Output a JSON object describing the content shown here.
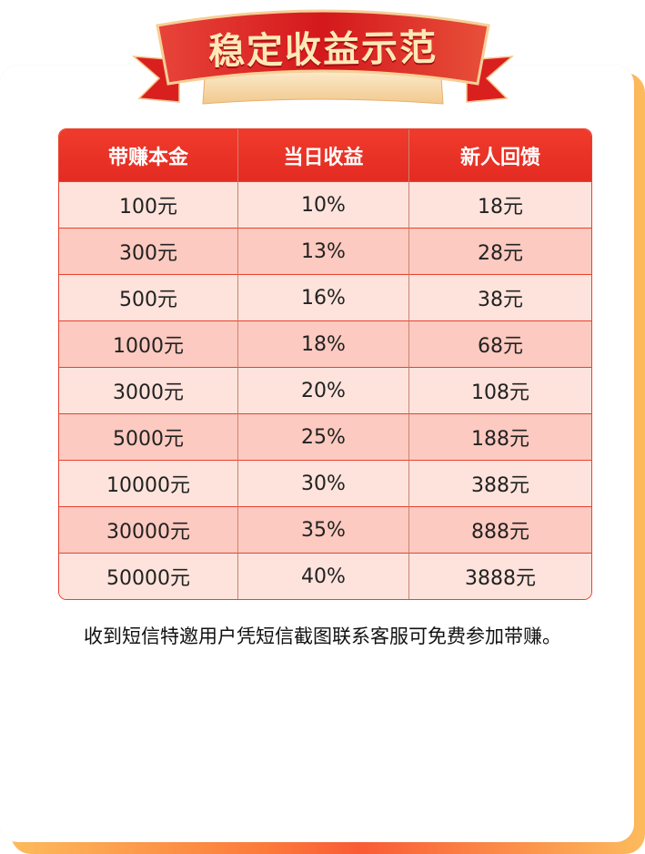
{
  "banner": {
    "title": "稳定收益示范"
  },
  "table": {
    "headers": [
      "带赚本金",
      "当日收益",
      "新人回馈"
    ],
    "rows": [
      [
        "100元",
        "10%",
        "18元"
      ],
      [
        "300元",
        "13%",
        "28元"
      ],
      [
        "500元",
        "16%",
        "38元"
      ],
      [
        "1000元",
        "18%",
        "68元"
      ],
      [
        "3000元",
        "20%",
        "108元"
      ],
      [
        "5000元",
        "25%",
        "188元"
      ],
      [
        "10000元",
        "30%",
        "388元"
      ],
      [
        "30000元",
        "35%",
        "888元"
      ],
      [
        "50000元",
        "40%",
        "3888元"
      ]
    ]
  },
  "note": "收到短信特邀用户凭短信截图联系客服可免费参加带赚。",
  "colors": {
    "header": "#e8322a",
    "row_light": "#fde3dc",
    "row_dark": "#fccac0",
    "banner_red": "#d4181c",
    "banner_gold": "#f7d9a0"
  }
}
